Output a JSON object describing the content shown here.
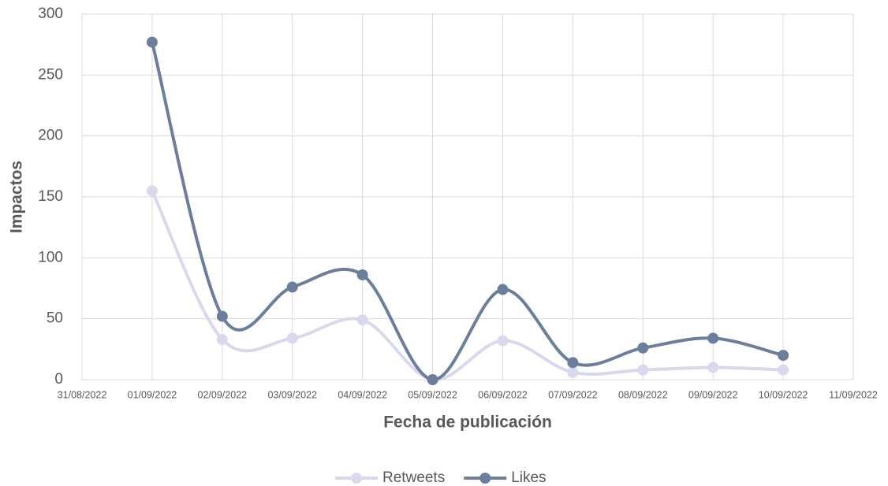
{
  "chart_data": {
    "type": "line",
    "x": [
      "01/09/2022",
      "02/09/2022",
      "03/09/2022",
      "04/09/2022",
      "05/09/2022",
      "06/09/2022",
      "07/09/2022",
      "08/09/2022",
      "09/09/2022",
      "10/09/2022"
    ],
    "series": [
      {
        "name": "Retweets",
        "color": "#d9d9ee",
        "values": [
          155,
          33,
          34,
          49,
          0,
          32,
          6,
          8,
          10,
          8
        ]
      },
      {
        "name": "Likes",
        "color": "#6b7e9c",
        "values": [
          277,
          52,
          76,
          86,
          0,
          74,
          14,
          26,
          34,
          20
        ]
      }
    ],
    "xlabel": "Fecha de publicación",
    "ylabel": "Impactos",
    "xlim": [
      "31/08/2022",
      "11/09/2022"
    ],
    "xticks": [
      "31/08/2022",
      "01/09/2022",
      "02/09/2022",
      "03/09/2022",
      "04/09/2022",
      "05/09/2022",
      "06/09/2022",
      "07/09/2022",
      "08/09/2022",
      "09/09/2022",
      "10/09/2022",
      "11/09/2022"
    ],
    "ylim": [
      0,
      300
    ],
    "yticks": [
      0,
      50,
      100,
      150,
      200,
      250,
      300
    ],
    "grid": true,
    "smooth": true,
    "legend": "bottom"
  }
}
